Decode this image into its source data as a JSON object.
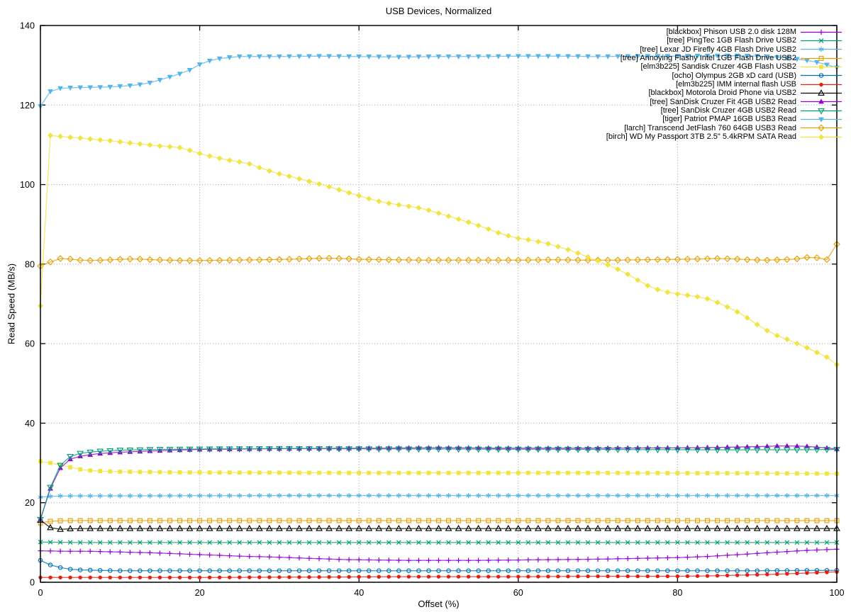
{
  "chart_data": {
    "type": "line",
    "title": "USB Devices, Normalized",
    "xlabel": "Offset (%)",
    "ylabel": "Read Speed (MB/s)",
    "xlim": [
      0,
      100
    ],
    "ylim": [
      0,
      140
    ],
    "xticks": [
      0,
      20,
      40,
      60,
      80,
      100
    ],
    "yticks": [
      0,
      20,
      40,
      60,
      80,
      100,
      120,
      140
    ],
    "grid": true,
    "legend_position": "top-right",
    "marker_step_x": 1.25,
    "grid_color": "#9c9c9c",
    "axis_color": "#000000",
    "series": [
      {
        "name": "[blackbox] Phison USB 2.0 disk 128M",
        "color": "#9400d3",
        "marker": "plus",
        "points": [
          [
            0,
            7.9
          ],
          [
            3,
            7.8
          ],
          [
            6,
            7.8
          ],
          [
            10,
            7.6
          ],
          [
            14,
            7.4
          ],
          [
            18,
            7.1
          ],
          [
            22,
            6.8
          ],
          [
            26,
            6.5
          ],
          [
            30,
            6.3
          ],
          [
            34,
            6.0
          ],
          [
            38,
            5.7
          ],
          [
            42,
            5.6
          ],
          [
            46,
            5.5
          ],
          [
            55,
            5.5
          ],
          [
            60,
            5.6
          ],
          [
            65,
            5.7
          ],
          [
            70,
            5.8
          ],
          [
            75,
            6.0
          ],
          [
            80,
            6.2
          ],
          [
            84,
            6.5
          ],
          [
            88,
            7.0
          ],
          [
            92,
            7.5
          ],
          [
            96,
            8.0
          ],
          [
            100,
            8.3
          ]
        ]
      },
      {
        "name": "[tree] PingTec 1GB Flash Drive USB2",
        "color": "#009e73",
        "marker": "cross",
        "points": [
          [
            0,
            10.1
          ],
          [
            5,
            10.0
          ],
          [
            50,
            10.0
          ],
          [
            100,
            10.0
          ]
        ]
      },
      {
        "name": "[tree] Lexar JD Firefly 4GB Flash Drive USB2",
        "color": "#56b4e9",
        "marker": "asterisk",
        "points": [
          [
            0,
            21.4
          ],
          [
            2,
            21.7
          ],
          [
            30,
            21.8
          ],
          [
            100,
            21.8
          ]
        ]
      },
      {
        "name": "[tree] Annoying Flashy Intel 1GB Flash Drive USB2",
        "color": "#e69f00",
        "marker": "square-open",
        "points": [
          [
            0,
            14.9
          ],
          [
            1,
            15.3
          ],
          [
            3,
            15.5
          ],
          [
            50,
            15.5
          ],
          [
            100,
            15.5
          ]
        ]
      },
      {
        "name": "[elm3b225] Sandisk Cruzer 4GB Flash USB2",
        "color": "#f0e442",
        "marker": "square-filled",
        "points": [
          [
            0,
            30.4
          ],
          [
            1,
            30.1
          ],
          [
            2,
            29.7
          ],
          [
            3,
            29.2
          ],
          [
            4,
            28.8
          ],
          [
            5,
            28.4
          ],
          [
            6,
            28.1
          ],
          [
            8,
            27.9
          ],
          [
            10,
            27.8
          ],
          [
            15,
            27.7
          ],
          [
            20,
            27.6
          ],
          [
            40,
            27.5
          ],
          [
            70,
            27.5
          ],
          [
            90,
            27.4
          ],
          [
            100,
            27.3
          ]
        ]
      },
      {
        "name": "[ocho] Olympus 2GB xD card (USB)",
        "color": "#0072b2",
        "marker": "circle-open",
        "points": [
          [
            0,
            5.5
          ],
          [
            1,
            4.5
          ],
          [
            2,
            3.9
          ],
          [
            3,
            3.5
          ],
          [
            4,
            3.2
          ],
          [
            5,
            3.1
          ],
          [
            7,
            3.0
          ],
          [
            10,
            2.9
          ],
          [
            90,
            2.9
          ],
          [
            100,
            3.0
          ]
        ]
      },
      {
        "name": "[elm3b225] IMM internal flash USB",
        "color": "#e51e10",
        "marker": "circle-filled",
        "points": [
          [
            0,
            1.2
          ],
          [
            20,
            1.2
          ],
          [
            35,
            1.3
          ],
          [
            45,
            1.4
          ],
          [
            60,
            1.4
          ],
          [
            70,
            1.5
          ],
          [
            80,
            1.5
          ],
          [
            84,
            1.6
          ],
          [
            88,
            1.8
          ],
          [
            92,
            2.0
          ],
          [
            96,
            2.3
          ],
          [
            100,
            2.6
          ]
        ]
      },
      {
        "name": "[blackbox] Motorola Droid Phone via USB2",
        "color": "#000000",
        "marker": "triangle-up-open",
        "points": [
          [
            0,
            15.6
          ],
          [
            1,
            13.9
          ],
          [
            2,
            13.2
          ],
          [
            3,
            13.4
          ],
          [
            5,
            13.5
          ],
          [
            50,
            13.5
          ],
          [
            100,
            13.5
          ]
        ]
      },
      {
        "name": "[tree] SanDisk Cruzer Fit 4GB USB2 Read",
        "color": "#9400d3",
        "marker": "triangle-up-filled",
        "points": [
          [
            0,
            15.8
          ],
          [
            1,
            22.3
          ],
          [
            2,
            27.3
          ],
          [
            3,
            30.2
          ],
          [
            4,
            31.2
          ],
          [
            5,
            31.7
          ],
          [
            7,
            32.3
          ],
          [
            10,
            32.7
          ],
          [
            15,
            33.1
          ],
          [
            20,
            33.4
          ],
          [
            30,
            33.6
          ],
          [
            40,
            33.7
          ],
          [
            50,
            33.8
          ],
          [
            60,
            33.7
          ],
          [
            70,
            33.7
          ],
          [
            80,
            33.8
          ],
          [
            85,
            33.9
          ],
          [
            90,
            34.1
          ],
          [
            93,
            34.3
          ],
          [
            96,
            34.2
          ],
          [
            98,
            33.9
          ],
          [
            100,
            33.5
          ]
        ]
      },
      {
        "name": "[tree] SanDisk Cruzer 4GB USB2 Read",
        "color": "#009e73",
        "marker": "triangle-down-open",
        "points": [
          [
            0,
            15.8
          ],
          [
            1,
            22.5
          ],
          [
            2,
            28.0
          ],
          [
            3,
            30.8
          ],
          [
            4,
            31.9
          ],
          [
            5,
            32.4
          ],
          [
            7,
            32.9
          ],
          [
            10,
            33.2
          ],
          [
            15,
            33.4
          ],
          [
            20,
            33.5
          ],
          [
            30,
            33.6
          ],
          [
            50,
            33.5
          ],
          [
            70,
            33.4
          ],
          [
            85,
            33.3
          ],
          [
            95,
            33.3
          ],
          [
            100,
            33.4
          ]
        ]
      },
      {
        "name": "[tiger] Patriot PMAP 16GB USB3 Read",
        "color": "#56b4e9",
        "marker": "triangle-down-filled",
        "points": [
          [
            0,
            119.7
          ],
          [
            1,
            123.2
          ],
          [
            2,
            124.1
          ],
          [
            3,
            124.3
          ],
          [
            5,
            124.4
          ],
          [
            8,
            124.5
          ],
          [
            10,
            124.7
          ],
          [
            12,
            125.0
          ],
          [
            13,
            125.3
          ],
          [
            14,
            125.7
          ],
          [
            15,
            126.3
          ],
          [
            16,
            126.9
          ],
          [
            17,
            127.5
          ],
          [
            18,
            128.2
          ],
          [
            19,
            129.0
          ],
          [
            20,
            130.2
          ],
          [
            21,
            131.0
          ],
          [
            22,
            131.5
          ],
          [
            23,
            131.9
          ],
          [
            24,
            132.0
          ],
          [
            25,
            132.2
          ],
          [
            30,
            132.2
          ],
          [
            35,
            132.3
          ],
          [
            40,
            132.2
          ],
          [
            45,
            132.1
          ],
          [
            50,
            132.2
          ],
          [
            55,
            132.2
          ],
          [
            60,
            132.3
          ],
          [
            65,
            132.3
          ],
          [
            70,
            132.2
          ],
          [
            75,
            132.3
          ],
          [
            80,
            132.3
          ],
          [
            85,
            132.4
          ],
          [
            88,
            132.4
          ],
          [
            90,
            132.3
          ],
          [
            92,
            132.1
          ],
          [
            94,
            131.8
          ],
          [
            96,
            131.3
          ],
          [
            97,
            131.0
          ],
          [
            98,
            130.5
          ],
          [
            99,
            130.0
          ],
          [
            100,
            129.4
          ]
        ]
      },
      {
        "name": "[larch] Transcend JetFlash 760 64GB USB3 Read",
        "color": "#e69f00",
        "marker": "diamond-open",
        "points": [
          [
            0,
            79.5
          ],
          [
            1,
            80.3
          ],
          [
            2,
            81.3
          ],
          [
            3,
            81.5
          ],
          [
            4,
            81.2
          ],
          [
            5,
            81.0
          ],
          [
            6,
            80.9
          ],
          [
            8,
            81.0
          ],
          [
            10,
            81.2
          ],
          [
            12,
            81.3
          ],
          [
            14,
            81.1
          ],
          [
            16,
            81.0
          ],
          [
            18,
            80.9
          ],
          [
            20,
            80.9
          ],
          [
            24,
            81.0
          ],
          [
            28,
            81.1
          ],
          [
            31,
            81.2
          ],
          [
            34,
            81.4
          ],
          [
            36,
            81.5
          ],
          [
            38,
            81.4
          ],
          [
            40,
            81.2
          ],
          [
            44,
            81.1
          ],
          [
            48,
            81.0
          ],
          [
            55,
            81.0
          ],
          [
            60,
            81.0
          ],
          [
            64,
            81.1
          ],
          [
            68,
            81.0
          ],
          [
            72,
            81.0
          ],
          [
            76,
            81.1
          ],
          [
            80,
            81.2
          ],
          [
            83,
            81.3
          ],
          [
            85,
            81.4
          ],
          [
            87,
            81.3
          ],
          [
            89,
            81.1
          ],
          [
            91,
            81.0
          ],
          [
            93,
            81.1
          ],
          [
            95,
            81.3
          ],
          [
            97,
            81.9
          ],
          [
            98,
            81.3
          ],
          [
            99,
            81.1
          ],
          [
            100,
            85.0
          ]
        ]
      },
      {
        "name": "[birch] WD My Passport 3TB 2.5\" 5.4kRPM SATA Read",
        "color": "#f0e442",
        "marker": "diamond-filled",
        "points": [
          [
            0,
            69.5
          ],
          [
            1,
            112.4
          ],
          [
            3,
            112.0
          ],
          [
            5,
            111.7
          ],
          [
            7,
            111.3
          ],
          [
            9,
            111.0
          ],
          [
            11,
            110.5
          ],
          [
            13,
            110.1
          ],
          [
            15,
            109.7
          ],
          [
            17,
            109.4
          ],
          [
            18,
            109.2
          ],
          [
            19,
            108.4
          ],
          [
            20,
            107.8
          ],
          [
            22,
            106.8
          ],
          [
            24,
            106.0
          ],
          [
            26,
            105.4
          ],
          [
            28,
            103.9
          ],
          [
            30,
            102.7
          ],
          [
            32,
            101.7
          ],
          [
            34,
            100.7
          ],
          [
            36,
            99.6
          ],
          [
            38,
            98.4
          ],
          [
            40,
            97.2
          ],
          [
            42,
            96.0
          ],
          [
            44,
            95.2
          ],
          [
            46,
            94.6
          ],
          [
            48,
            94.0
          ],
          [
            50,
            92.8
          ],
          [
            52,
            91.6
          ],
          [
            54,
            90.4
          ],
          [
            56,
            89.0
          ],
          [
            58,
            87.5
          ],
          [
            60,
            86.5
          ],
          [
            62,
            85.9
          ],
          [
            64,
            85.0
          ],
          [
            66,
            83.8
          ],
          [
            68,
            82.4
          ],
          [
            70,
            80.8
          ],
          [
            72,
            79.2
          ],
          [
            74,
            77.2
          ],
          [
            76,
            74.8
          ],
          [
            78,
            73.2
          ],
          [
            80,
            72.5
          ],
          [
            82,
            72.0
          ],
          [
            84,
            71.2
          ],
          [
            86,
            69.5
          ],
          [
            88,
            67.5
          ],
          [
            90,
            64.8
          ],
          [
            92,
            62.4
          ],
          [
            94,
            60.9
          ],
          [
            96,
            59.2
          ],
          [
            98,
            57.3
          ],
          [
            99,
            56.4
          ],
          [
            100,
            54.7
          ]
        ]
      }
    ]
  }
}
